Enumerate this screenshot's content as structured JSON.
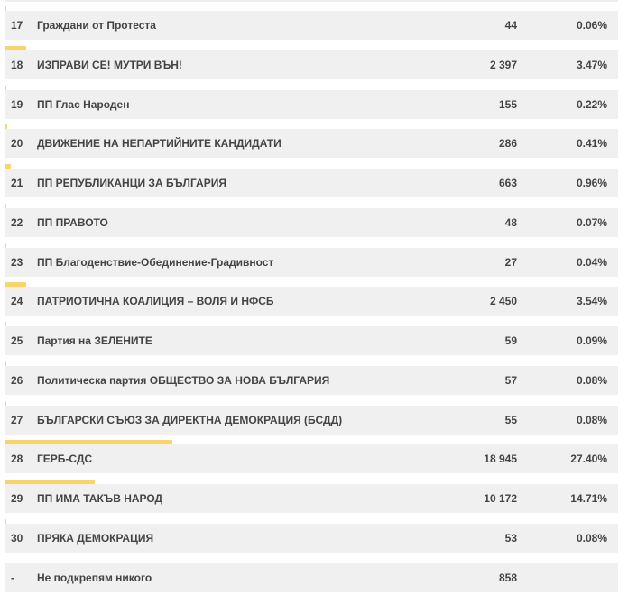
{
  "rows": [
    {
      "num": "17",
      "name": "Граждани от Протеста",
      "votes": "44",
      "percent": "0.06%",
      "share": 0.06
    },
    {
      "num": "18",
      "name": "ИЗПРАВИ СЕ! МУТРИ ВЪН!",
      "votes": "2 397",
      "percent": "3.47%",
      "share": 3.47
    },
    {
      "num": "19",
      "name": "ПП Глас Народен",
      "votes": "155",
      "percent": "0.22%",
      "share": 0.22
    },
    {
      "num": "20",
      "name": "ДВИЖЕНИЕ НА НЕПАРТИЙНИТЕ КАНДИДАТИ",
      "votes": "286",
      "percent": "0.41%",
      "share": 0.41
    },
    {
      "num": "21",
      "name": "ПП РЕПУБЛИКАНЦИ ЗА БЪЛГАРИЯ",
      "votes": "663",
      "percent": "0.96%",
      "share": 0.96
    },
    {
      "num": "22",
      "name": "ПП ПРАВОТО",
      "votes": "48",
      "percent": "0.07%",
      "share": 0.07
    },
    {
      "num": "23",
      "name": "ПП Благоденствие-Обединение-Градивност",
      "votes": "27",
      "percent": "0.04%",
      "share": 0.04
    },
    {
      "num": "24",
      "name": "ПАТРИОТИЧНА КОАЛИЦИЯ – ВОЛЯ И НФСБ",
      "votes": "2 450",
      "percent": "3.54%",
      "share": 3.54
    },
    {
      "num": "25",
      "name": "Партия на ЗЕЛЕНИТЕ",
      "votes": "59",
      "percent": "0.09%",
      "share": 0.09
    },
    {
      "num": "26",
      "name": "Политическа партия  ОБЩЕСТВО ЗА НОВА БЪЛГАРИЯ",
      "votes": "57",
      "percent": "0.08%",
      "share": 0.08
    },
    {
      "num": "27",
      "name": "БЪЛГАРСКИ СЪЮЗ ЗА ДИРЕКТНА ДЕМОКРАЦИЯ (БСДД)",
      "votes": "55",
      "percent": "0.08%",
      "share": 0.08
    },
    {
      "num": "28",
      "name": "ГЕРБ-СДС",
      "votes": "18 945",
      "percent": "27.40%",
      "share": 27.4
    },
    {
      "num": "29",
      "name": "ПП ИМА ТАКЪВ НАРОД",
      "votes": "10 172",
      "percent": "14.71%",
      "share": 14.71
    },
    {
      "num": "30",
      "name": "ПРЯКА ДЕМОКРАЦИЯ",
      "votes": "53",
      "percent": "0.08%",
      "share": 0.08
    },
    {
      "num": "-",
      "name": "Не подкрепям никого",
      "votes": "858",
      "percent": "",
      "share": null
    }
  ],
  "colors": {
    "bar": "#f8d56b",
    "row_background": "#f0f0f0",
    "text": "#444444"
  }
}
